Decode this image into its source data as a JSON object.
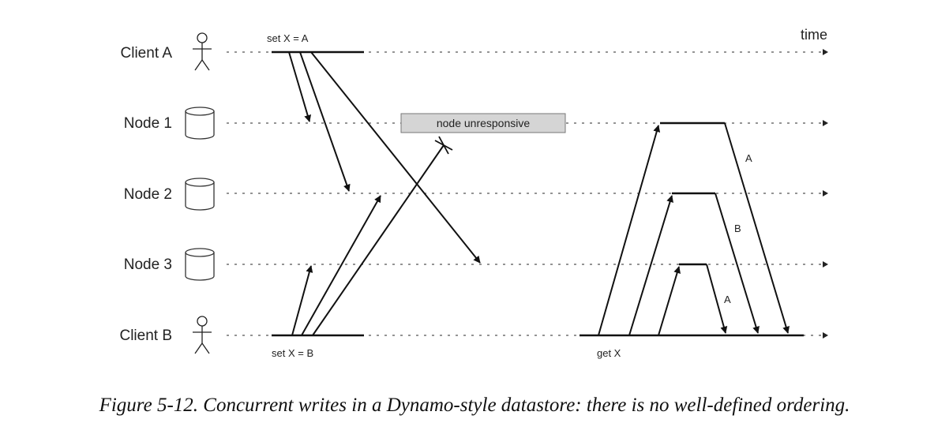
{
  "lanes": [
    {
      "label": "Client A",
      "kind": "client"
    },
    {
      "label": "Node 1",
      "kind": "node"
    },
    {
      "label": "Node 2",
      "kind": "node"
    },
    {
      "label": "Node 3",
      "kind": "node"
    },
    {
      "label": "Client B",
      "kind": "client"
    }
  ],
  "time_label": "time",
  "annotations": {
    "set_a": "set X = A",
    "set_b": "set X = B",
    "get_x": "get X",
    "unresponsive": "node unresponsive",
    "resp_node1": "A",
    "resp_node2": "B",
    "resp_node3": "A"
  },
  "caption": "Figure 5-12. Concurrent writes in a Dynamo-style datastore: there is no well-defined ordering."
}
